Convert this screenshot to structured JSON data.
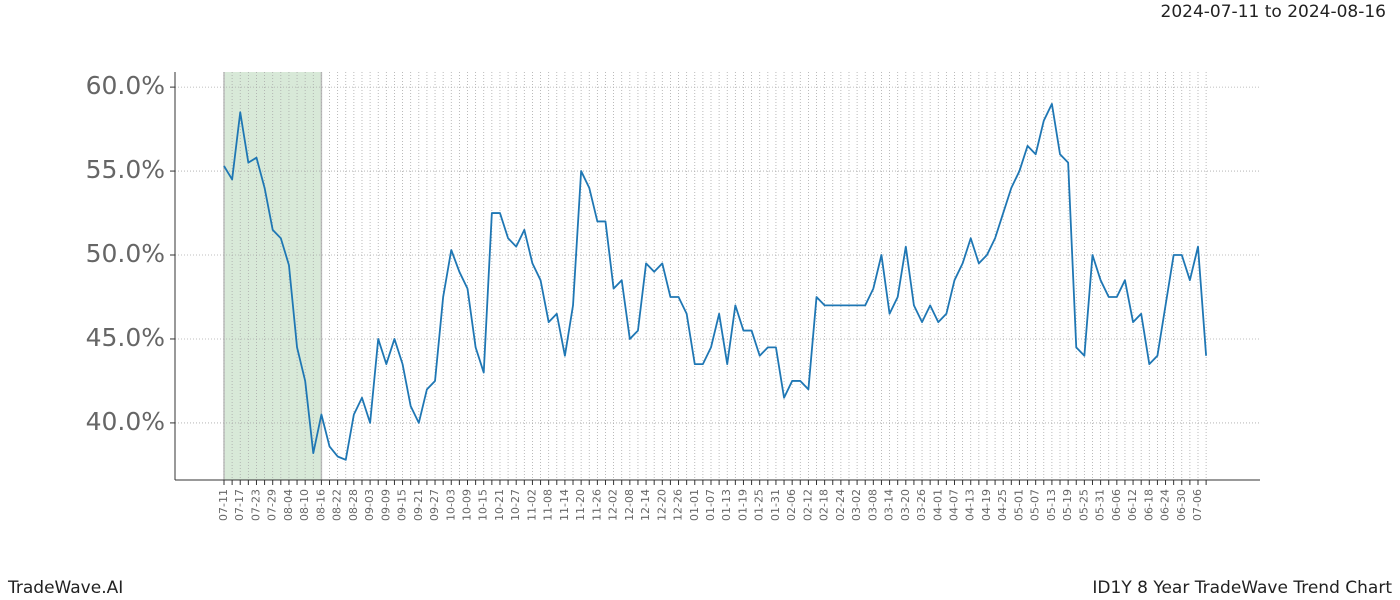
{
  "chart_data": {
    "type": "line",
    "subtitle": "2024-07-11 to 2024-08-16",
    "categories": [
      "07-11",
      null,
      "07-17",
      null,
      "07-23",
      null,
      "07-29",
      null,
      "08-04",
      null,
      "08-10",
      null,
      "08-16",
      null,
      "08-22",
      null,
      "08-28",
      null,
      "09-03",
      null,
      "09-09",
      null,
      "09-15",
      null,
      "09-21",
      null,
      "09-27",
      null,
      "10-03",
      null,
      "10-09",
      null,
      "10-15",
      null,
      "10-21",
      null,
      "10-27",
      null,
      "11-02",
      null,
      "11-08",
      null,
      "11-14",
      null,
      "11-20",
      null,
      "11-26",
      null,
      "12-02",
      null,
      "12-08",
      null,
      "12-14",
      null,
      "12-20",
      null,
      "12-26",
      null,
      "01-01",
      null,
      "01-07",
      null,
      "01-13",
      null,
      "01-19",
      null,
      "01-25",
      null,
      "01-31",
      null,
      "02-06",
      null,
      "02-12",
      null,
      "02-18",
      null,
      "02-24",
      null,
      "03-02",
      null,
      "03-08",
      null,
      "03-14",
      null,
      "03-20",
      null,
      "03-26",
      null,
      "04-01",
      null,
      "04-07",
      null,
      "04-13",
      null,
      "04-19",
      null,
      "04-25",
      null,
      "05-01",
      null,
      "05-07",
      null,
      "05-13",
      null,
      "05-19",
      null,
      "05-25",
      null,
      "05-31",
      null,
      "06-06",
      null,
      "06-12",
      null,
      "06-18",
      null,
      "06-24",
      null,
      "06-30",
      null,
      "07-06",
      null
    ],
    "values": [
      55.3,
      54.5,
      58.5,
      55.5,
      55.8,
      54.0,
      51.5,
      51.0,
      49.4,
      44.5,
      42.5,
      38.2,
      40.5,
      38.6,
      38.0,
      37.8,
      40.5,
      41.5,
      40.0,
      45.0,
      43.5,
      45.0,
      43.5,
      41.0,
      40.0,
      42.0,
      42.5,
      47.5,
      50.3,
      49.0,
      48.0,
      44.5,
      43.0,
      52.5,
      52.5,
      51.0,
      50.5,
      51.5,
      49.5,
      48.5,
      46.0,
      46.5,
      44.0,
      47.0,
      55.0,
      54.0,
      52.0,
      52.0,
      48.0,
      48.5,
      45.0,
      45.5,
      49.5,
      49.0,
      49.5,
      47.5,
      47.5,
      46.5,
      43.5,
      43.5,
      44.5,
      46.5,
      43.5,
      47.0,
      45.5,
      45.5,
      44.0,
      44.5,
      44.5,
      41.5,
      42.5,
      42.5,
      42.0,
      47.5,
      47.0,
      47.0,
      47.0,
      47.0,
      47.0,
      47.0,
      48.0,
      50.0,
      46.5,
      47.5,
      50.5,
      47.0,
      46.0,
      47.0,
      46.0,
      46.5,
      48.5,
      49.5,
      51.0,
      49.5,
      50.0,
      51.0,
      52.5,
      54.0,
      55.0,
      56.5,
      56.0,
      58.0,
      59.0,
      56.0,
      55.5,
      44.5,
      44.0,
      50.0,
      48.5,
      47.5,
      47.5,
      48.5,
      46.0,
      46.5,
      43.5,
      44.0,
      47.0,
      50.0,
      50.0,
      48.5,
      50.5,
      44.0
    ],
    "color": "#1f77b4",
    "highlight_color": "#d8e9d8",
    "ylim": [
      36.6,
      60.9
    ],
    "yticks": [
      {
        "value": 40,
        "label": "40.0%"
      },
      {
        "value": 45,
        "label": "45.0%"
      },
      {
        "value": 50,
        "label": "50.0%"
      },
      {
        "value": 55,
        "label": "55.0%"
      },
      {
        "value": 60,
        "label": "60.0%"
      }
    ],
    "grid": true
  },
  "footer": {
    "left": "TradeWave.AI",
    "right": "ID1Y 8 Year TradeWave Trend Chart"
  }
}
